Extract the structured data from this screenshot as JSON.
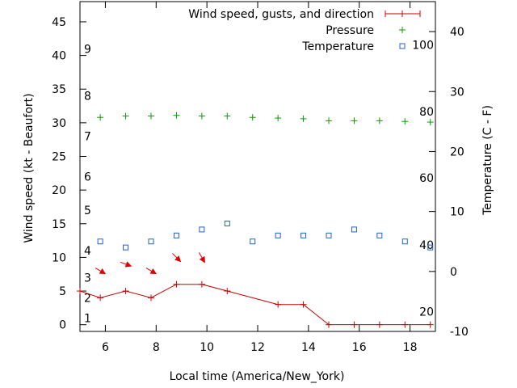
{
  "chart_data": {
    "type": "line",
    "xlabel": "Local time (America/New_York)",
    "ylabel_left": "Wind speed (kt - Beaufort)",
    "ylabel_right": "Temperature (C - F)",
    "xlim": [
      5,
      19
    ],
    "ylim_left": [
      -1,
      48
    ],
    "ylim_right": [
      -10,
      45
    ],
    "x_ticks": [
      6,
      8,
      10,
      12,
      14,
      16,
      18
    ],
    "y_left_ticks": [
      0,
      5,
      10,
      15,
      20,
      25,
      30,
      35,
      40,
      45
    ],
    "y_right_ticks": [
      -10,
      0,
      10,
      20,
      30,
      40
    ],
    "beaufort_labels": [
      {
        "label": "1",
        "kt": 1
      },
      {
        "label": "2",
        "kt": 4
      },
      {
        "label": "3",
        "kt": 7
      },
      {
        "label": "4",
        "kt": 11
      },
      {
        "label": "5",
        "kt": 17
      },
      {
        "label": "6",
        "kt": 22
      },
      {
        "label": "7",
        "kt": 28
      },
      {
        "label": "8",
        "kt": 34
      },
      {
        "label": "9",
        "kt": 41
      }
    ],
    "fahrenheit_labels": [
      {
        "label": "20",
        "celsius": -6.7
      },
      {
        "label": "40",
        "celsius": 4.4
      },
      {
        "label": "60",
        "celsius": 15.6
      },
      {
        "label": "80",
        "celsius": 26.7
      },
      {
        "label": "100",
        "celsius": 37.8
      }
    ],
    "grid": false,
    "legend_position": "top-right",
    "series": [
      {
        "name": "Wind speed, gusts, and direction",
        "axis": "left",
        "style": "line-plus",
        "color": "#cc0000",
        "x": [
          5,
          5.8,
          6.8,
          7.8,
          8.8,
          9.8,
          10.8,
          12.8,
          13.8,
          14.8,
          15.8,
          16.8,
          17.8,
          18.8
        ],
        "y": [
          5,
          4,
          5,
          4,
          6,
          6,
          5,
          3,
          3,
          0,
          0,
          0,
          0,
          0
        ]
      },
      {
        "name": "Pressure",
        "axis": "left",
        "style": "plus",
        "color": "#00a000",
        "x": [
          5.8,
          6.8,
          7.8,
          8.8,
          9.8,
          10.8,
          11.8,
          12.8,
          13.8,
          14.8,
          15.8,
          16.8,
          17.8,
          18.8
        ],
        "y": [
          30.8,
          31.0,
          31.0,
          31.1,
          31.0,
          31.0,
          30.8,
          30.7,
          30.6,
          30.3,
          30.3,
          30.3,
          30.2,
          30.1
        ]
      },
      {
        "name": "Temperature",
        "axis": "right",
        "style": "square",
        "color": "#2060d0",
        "x": [
          5.8,
          6.8,
          7.8,
          8.8,
          9.8,
          10.8,
          11.8,
          12.8,
          13.8,
          14.8,
          15.8,
          16.8,
          17.8,
          18.8
        ],
        "y": [
          5,
          4,
          5,
          6,
          7,
          8,
          5,
          6,
          6,
          6,
          7,
          6,
          5,
          4
        ]
      }
    ],
    "wind_arrows": {
      "color": "#e00000",
      "x": [
        5.8,
        6.8,
        7.8,
        8.8,
        9.8
      ],
      "y": [
        8,
        9,
        8,
        10,
        10
      ],
      "direction_deg": [
        300,
        290,
        300,
        315,
        330
      ]
    }
  }
}
